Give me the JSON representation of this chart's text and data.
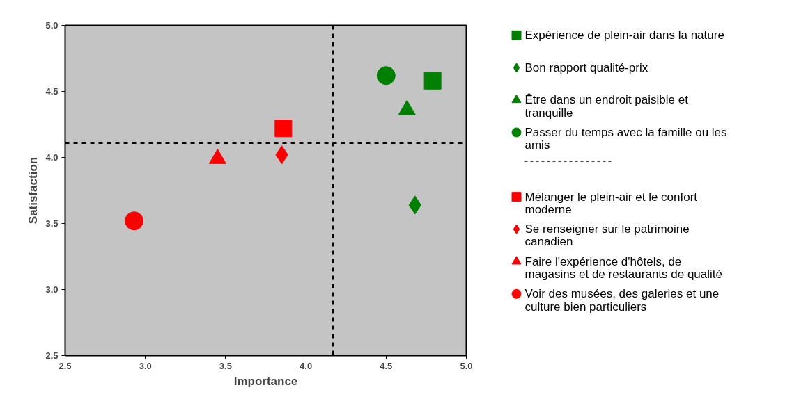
{
  "chart_data": {
    "type": "scatter",
    "xlabel": "Importance",
    "ylabel": "Satisfaction",
    "xlim": [
      2.5,
      5.0
    ],
    "ylim": [
      2.5,
      5.0
    ],
    "xticks": [
      {
        "value": 2.5,
        "label": "2.5"
      },
      {
        "value": 3.0,
        "label": "3.0"
      },
      {
        "value": 3.5,
        "label": "3.5"
      },
      {
        "value": 4.0,
        "label": "4.0"
      },
      {
        "value": 4.5,
        "label": "4.5"
      },
      {
        "value": 5.0,
        "label": "5.0"
      }
    ],
    "yticks": [
      {
        "value": 2.5,
        "label": "2.5"
      },
      {
        "value": 3.0,
        "label": "3.0"
      },
      {
        "value": 3.5,
        "label": "3.5"
      },
      {
        "value": 4.0,
        "label": "4.0"
      },
      {
        "value": 4.5,
        "label": "4.5"
      },
      {
        "value": 5.0,
        "label": "5.0"
      }
    ],
    "grid": false,
    "legend": "right",
    "ref_lines": [
      {
        "axis": "x",
        "value": 4.17,
        "color": "#000000",
        "line_style": "dashed"
      },
      {
        "axis": "y",
        "value": 4.11,
        "color": "#000000",
        "line_style": "dashed"
      }
    ],
    "series": [
      {
        "name": "Expérience de plein-air dans la nature",
        "color": "#008000",
        "marker": "square",
        "x": [
          4.79
        ],
        "values": [
          4.58
        ]
      },
      {
        "name": "Bon rapport qualité-prix",
        "color": "#008000",
        "marker": "diamond",
        "x": [
          4.68
        ],
        "values": [
          3.64
        ]
      },
      {
        "name": "Être dans un endroit paisible et tranquille",
        "color": "#008000",
        "marker": "triangle",
        "x": [
          4.63
        ],
        "values": [
          4.36
        ]
      },
      {
        "name": "Passer du temps avec la famille ou les amis",
        "color": "#008000",
        "marker": "circle",
        "x": [
          4.5
        ],
        "values": [
          4.62
        ]
      },
      {
        "name": "Mélanger le plein-air et le confort moderne",
        "color": "#ff0000",
        "marker": "square",
        "x": [
          3.86
        ],
        "values": [
          4.22
        ]
      },
      {
        "name": "Se renseigner sur le patrimoine canadien",
        "color": "#ff0000",
        "marker": "diamond",
        "x": [
          3.85
        ],
        "values": [
          4.02
        ]
      },
      {
        "name": "Faire l'expérience d'hôtels, de magasins et de restaurants de qualité",
        "color": "#ff0000",
        "marker": "triangle",
        "x": [
          3.45
        ],
        "values": [
          3.99
        ]
      },
      {
        "name": "Voir des musées, des galeries et une culture bien particuliers",
        "color": "#ff0000",
        "marker": "circle",
        "x": [
          2.93
        ],
        "values": [
          3.52
        ]
      }
    ]
  }
}
